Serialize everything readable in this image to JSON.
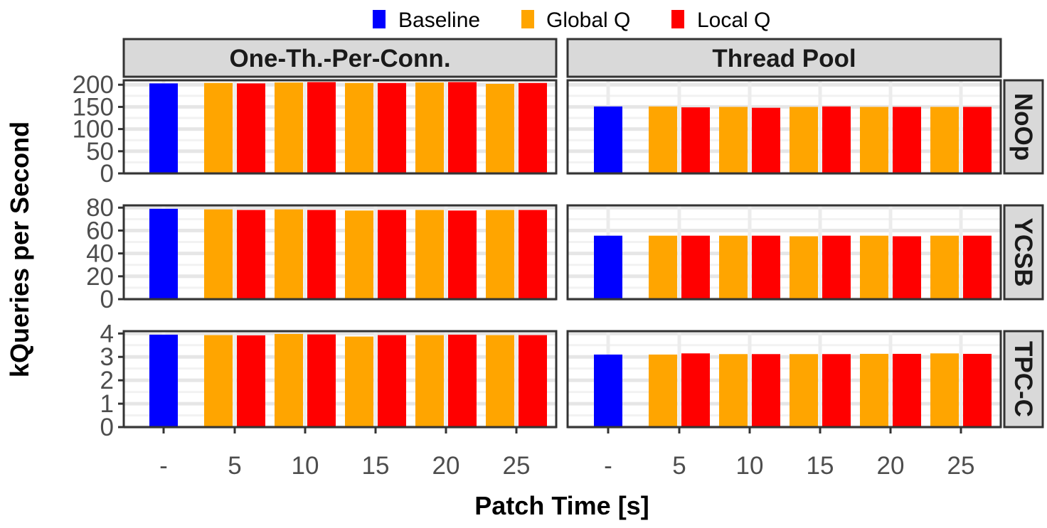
{
  "chart_data": {
    "type": "bar",
    "xlabel": "Patch Time [s]",
    "ylabel": "kQueries per Second",
    "categories": [
      "-",
      "5",
      "10",
      "15",
      "20",
      "25"
    ],
    "legend": {
      "position": "top",
      "entries": [
        {
          "name": "Baseline",
          "color": "#0000ff"
        },
        {
          "name": "Global Q",
          "color": "#ffa500"
        },
        {
          "name": "Local Q",
          "color": "#ff0000"
        }
      ]
    },
    "columns": [
      "One-Th.-Per-Conn.",
      "Thread Pool"
    ],
    "rows": [
      {
        "name": "NoOp",
        "ylim": [
          0,
          210
        ],
        "ticks": [
          0,
          50,
          100,
          150,
          200
        ]
      },
      {
        "name": "YCSB",
        "ylim": [
          0,
          82
        ],
        "ticks": [
          0,
          20,
          40,
          60,
          80
        ]
      },
      {
        "name": "TPC-C",
        "ylim": [
          0,
          4.1
        ],
        "ticks": [
          0,
          1,
          2,
          3,
          4
        ]
      }
    ],
    "panels": [
      {
        "row": "NoOp",
        "column": "One-Th.-Per-Conn.",
        "baseline": 203,
        "series": [
          {
            "name": "Global Q",
            "values": [
              null,
              204,
              205,
              204,
              205,
              202
            ]
          },
          {
            "name": "Local Q",
            "values": [
              null,
              203,
              206,
              204,
              206,
              204
            ]
          }
        ]
      },
      {
        "row": "NoOp",
        "column": "Thread Pool",
        "baseline": 151,
        "series": [
          {
            "name": "Global Q",
            "values": [
              null,
              151,
              150,
              150,
              150,
              150
            ]
          },
          {
            "name": "Local Q",
            "values": [
              null,
              149,
              148,
              151,
              150,
              150
            ]
          }
        ]
      },
      {
        "row": "YCSB",
        "column": "One-Th.-Per-Conn.",
        "baseline": 79,
        "series": [
          {
            "name": "Global Q",
            "values": [
              null,
              78.5,
              78.5,
              77.5,
              78,
              78
            ]
          },
          {
            "name": "Local Q",
            "values": [
              null,
              78,
              78,
              78,
              77.5,
              78
            ]
          }
        ]
      },
      {
        "row": "YCSB",
        "column": "Thread Pool",
        "baseline": 55.5,
        "series": [
          {
            "name": "Global Q",
            "values": [
              null,
              55.5,
              55.5,
              55,
              55.5,
              55.5
            ]
          },
          {
            "name": "Local Q",
            "values": [
              null,
              55.5,
              55.5,
              55.5,
              55,
              55.5
            ]
          }
        ]
      },
      {
        "row": "TPC-C",
        "column": "One-Th.-Per-Conn.",
        "baseline": 3.95,
        "series": [
          {
            "name": "Global Q",
            "values": [
              null,
              3.93,
              3.98,
              3.87,
              3.93,
              3.93
            ]
          },
          {
            "name": "Local Q",
            "values": [
              null,
              3.92,
              3.96,
              3.93,
              3.95,
              3.93
            ]
          }
        ]
      },
      {
        "row": "TPC-C",
        "column": "Thread Pool",
        "baseline": 3.1,
        "series": [
          {
            "name": "Global Q",
            "values": [
              null,
              3.1,
              3.12,
              3.12,
              3.13,
              3.15
            ]
          },
          {
            "name": "Local Q",
            "values": [
              null,
              3.15,
              3.12,
              3.12,
              3.13,
              3.13
            ]
          }
        ]
      }
    ]
  }
}
